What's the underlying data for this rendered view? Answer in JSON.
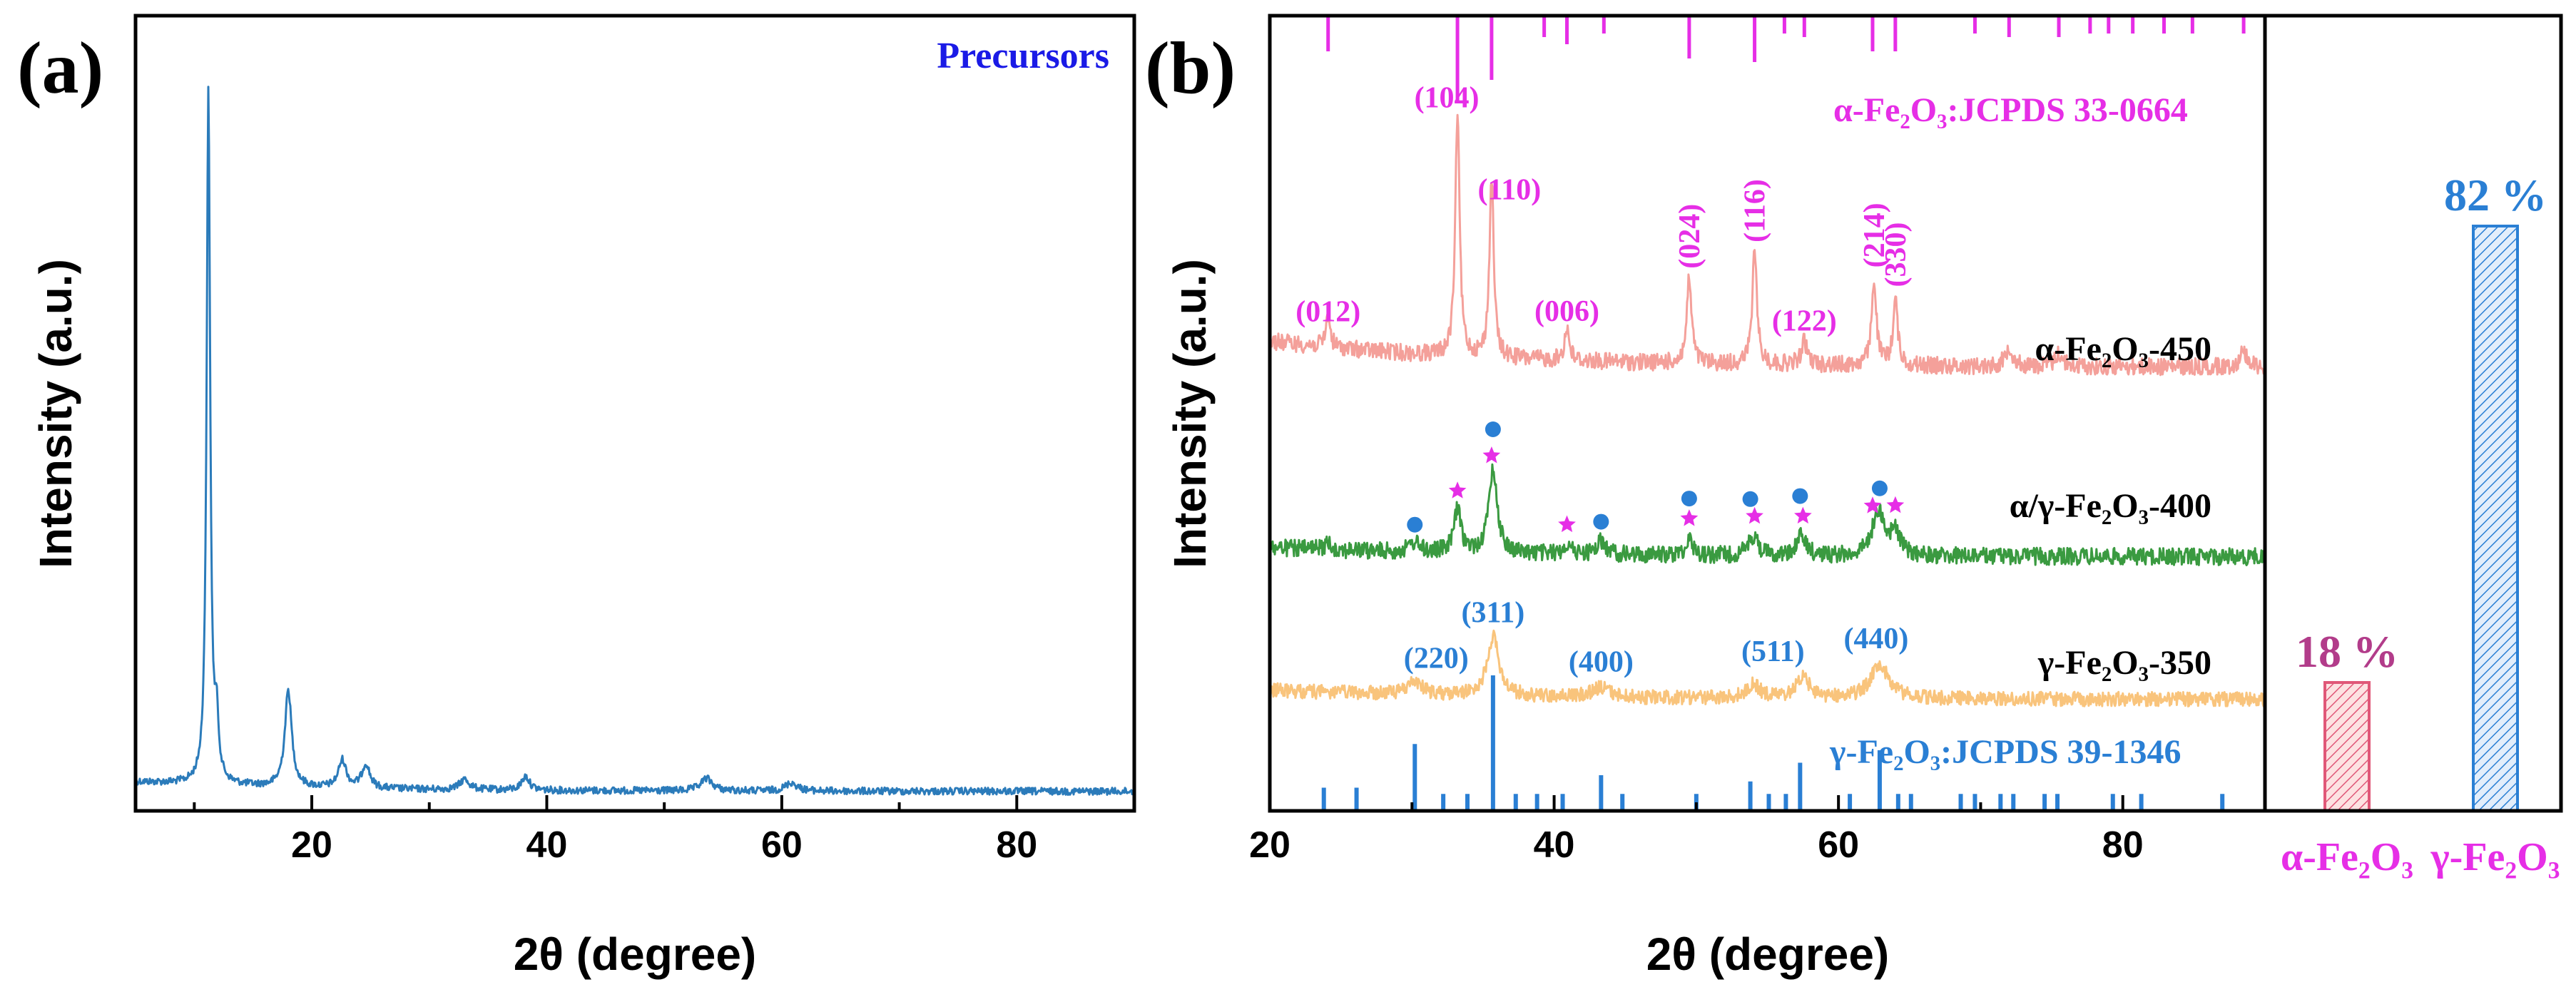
{
  "chart_data": [
    {
      "panel": "(a)",
      "type": "line",
      "title": "",
      "xlabel": "2θ (degree)",
      "ylabel": "Intensity (a.u.)",
      "xlim": [
        5,
        90
      ],
      "xticks": [
        20,
        40,
        60,
        80
      ],
      "series": [
        {
          "name": "Precursors",
          "color": "#2b7bba",
          "baseline": 0.035,
          "peaks": [
            [
              11.2,
              1.0,
              0.18
            ],
            [
              11.9,
              0.08,
              0.2
            ],
            [
              18.0,
              0.14,
              0.35
            ],
            [
              22.6,
              0.04,
              0.4
            ],
            [
              24.6,
              0.035,
              0.4
            ],
            [
              33.0,
              0.015,
              0.5
            ],
            [
              38.2,
              0.02,
              0.4
            ],
            [
              53.6,
              0.018,
              0.6
            ],
            [
              60.8,
              0.012,
              0.6
            ]
          ]
        }
      ]
    },
    {
      "panel": "(b)",
      "type": "line",
      "title": "",
      "xlabel": "2θ (degree)",
      "ylabel": "Intensity (a.u.)",
      "xlim": [
        20,
        90
      ],
      "xticks": [
        20,
        40,
        60,
        80
      ],
      "series": [
        {
          "name": "α-Fe₂O₃-450",
          "color": "#f4a09a",
          "baseline": 0.2,
          "peaks": [
            [
              24.1,
              0.1,
              0.18
            ],
            [
              33.2,
              0.75,
              0.18
            ],
            [
              35.6,
              0.55,
              0.18
            ],
            [
              40.9,
              0.1,
              0.2
            ],
            [
              49.5,
              0.26,
              0.2
            ],
            [
              54.1,
              0.34,
              0.2
            ],
            [
              57.6,
              0.07,
              0.25
            ],
            [
              62.5,
              0.26,
              0.2
            ],
            [
              64.0,
              0.2,
              0.2
            ],
            [
              72.0,
              0.06,
              0.3
            ],
            [
              75.5,
              0.04,
              0.3
            ],
            [
              88.5,
              0.05,
              0.3
            ]
          ]
        },
        {
          "name": "α/γ-Fe₂O₃-400",
          "color": "#3a9a40",
          "baseline": 0.07,
          "peaks": [
            [
              24.1,
              0.02,
              0.3
            ],
            [
              30.2,
              0.03,
              0.4
            ],
            [
              33.2,
              0.13,
              0.3
            ],
            [
              35.7,
              0.26,
              0.35
            ],
            [
              40.9,
              0.03,
              0.3
            ],
            [
              43.3,
              0.04,
              0.4
            ],
            [
              49.5,
              0.05,
              0.3
            ],
            [
              54.0,
              0.06,
              0.4
            ],
            [
              57.4,
              0.06,
              0.4
            ],
            [
              62.8,
              0.14,
              0.5
            ],
            [
              64.0,
              0.07,
              0.4
            ]
          ]
        },
        {
          "name": "γ-Fe₂O₃-350",
          "color": "#f9c47c",
          "baseline": 0.07,
          "peaks": [
            [
              30.2,
              0.04,
              0.6
            ],
            [
              35.7,
              0.18,
              0.5
            ],
            [
              43.3,
              0.03,
              0.7
            ],
            [
              54.0,
              0.04,
              0.6
            ],
            [
              57.5,
              0.06,
              0.6
            ],
            [
              62.9,
              0.1,
              0.8
            ]
          ]
        }
      ],
      "reference_alpha": {
        "name": "α-Fe₂O₃:JCPDS 33-0664",
        "color": "#e62ee6",
        "lines": [
          [
            24.1,
            0.3
          ],
          [
            33.2,
            1.0
          ],
          [
            35.6,
            0.7
          ],
          [
            39.3,
            0.1
          ],
          [
            40.9,
            0.2
          ],
          [
            43.5,
            0.05
          ],
          [
            49.5,
            0.4
          ],
          [
            54.1,
            0.45
          ],
          [
            56.2,
            0.05
          ],
          [
            57.6,
            0.1
          ],
          [
            62.4,
            0.3
          ],
          [
            64.0,
            0.3
          ],
          [
            69.6,
            0.05
          ],
          [
            72.0,
            0.1
          ],
          [
            75.5,
            0.1
          ],
          [
            77.7,
            0.05
          ],
          [
            79.0,
            0.05
          ],
          [
            80.7,
            0.05
          ],
          [
            82.9,
            0.05
          ],
          [
            84.9,
            0.05
          ],
          [
            88.5,
            0.05
          ]
        ]
      },
      "reference_gamma": {
        "name": "γ-Fe₂O₃:JCPDS 39-1346",
        "color": "#2a7fd4",
        "lines": [
          [
            23.8,
            0.1
          ],
          [
            26.1,
            0.1
          ],
          [
            30.2,
            0.45
          ],
          [
            32.2,
            0.05
          ],
          [
            33.9,
            0.05
          ],
          [
            35.7,
            1.0
          ],
          [
            37.3,
            0.05
          ],
          [
            38.8,
            0.05
          ],
          [
            40.6,
            0.05
          ],
          [
            43.3,
            0.2
          ],
          [
            44.8,
            0.05
          ],
          [
            50.0,
            0.05
          ],
          [
            53.8,
            0.15
          ],
          [
            55.1,
            0.05
          ],
          [
            56.3,
            0.05
          ],
          [
            57.3,
            0.3
          ],
          [
            60.8,
            0.05
          ],
          [
            62.9,
            0.4
          ],
          [
            64.2,
            0.05
          ],
          [
            65.1,
            0.05
          ],
          [
            68.6,
            0.05
          ],
          [
            69.6,
            0.05
          ],
          [
            71.4,
            0.05
          ],
          [
            72.3,
            0.05
          ],
          [
            74.5,
            0.05
          ],
          [
            75.4,
            0.05
          ],
          [
            79.3,
            0.05
          ],
          [
            81.3,
            0.05
          ],
          [
            87.0,
            0.05
          ]
        ]
      },
      "peak_labels_alpha": [
        {
          "text": "(012)",
          "x": 24.1,
          "rot": false
        },
        {
          "text": "(104)",
          "x": 33.2,
          "rot": false
        },
        {
          "text": "(110)",
          "x": 35.6,
          "rot": false
        },
        {
          "text": "(006)",
          "x": 40.9,
          "rot": false
        },
        {
          "text": "(024)",
          "x": 49.5,
          "rot": true
        },
        {
          "text": "(116)",
          "x": 54.1,
          "rot": true
        },
        {
          "text": "(122)",
          "x": 57.6,
          "rot": false
        },
        {
          "text": "(214)",
          "x": 62.5,
          "rot": true
        },
        {
          "text": "(330)",
          "x": 64.0,
          "rot": true
        }
      ],
      "peak_labels_gamma": [
        {
          "text": "(220)",
          "x": 30.2
        },
        {
          "text": "(311)",
          "x": 35.7
        },
        {
          "text": "(400)",
          "x": 43.3
        },
        {
          "text": "(511)",
          "x": 57.4
        },
        {
          "text": "(440)",
          "x": 62.9
        }
      ],
      "markers_alpha_x": [
        33.2,
        35.6,
        40.9,
        49.5,
        54.1,
        57.5,
        62.4,
        64.0
      ],
      "markers_gamma_x": [
        30.2,
        35.7,
        43.3,
        49.5,
        53.8,
        57.3,
        62.9
      ]
    },
    {
      "panel": "phase-fraction",
      "type": "bar",
      "categories": [
        "α-Fe₂O₃",
        "γ-Fe₂O₃"
      ],
      "values": [
        18,
        82
      ],
      "value_labels": [
        "18 %",
        "82 %"
      ],
      "ylim": [
        0,
        100
      ],
      "colors": [
        "#e05878",
        "#2a7fd4"
      ],
      "label_colors": [
        "#b23c8a",
        "#2a7fd4"
      ],
      "category_color": "#e62ee6"
    }
  ]
}
